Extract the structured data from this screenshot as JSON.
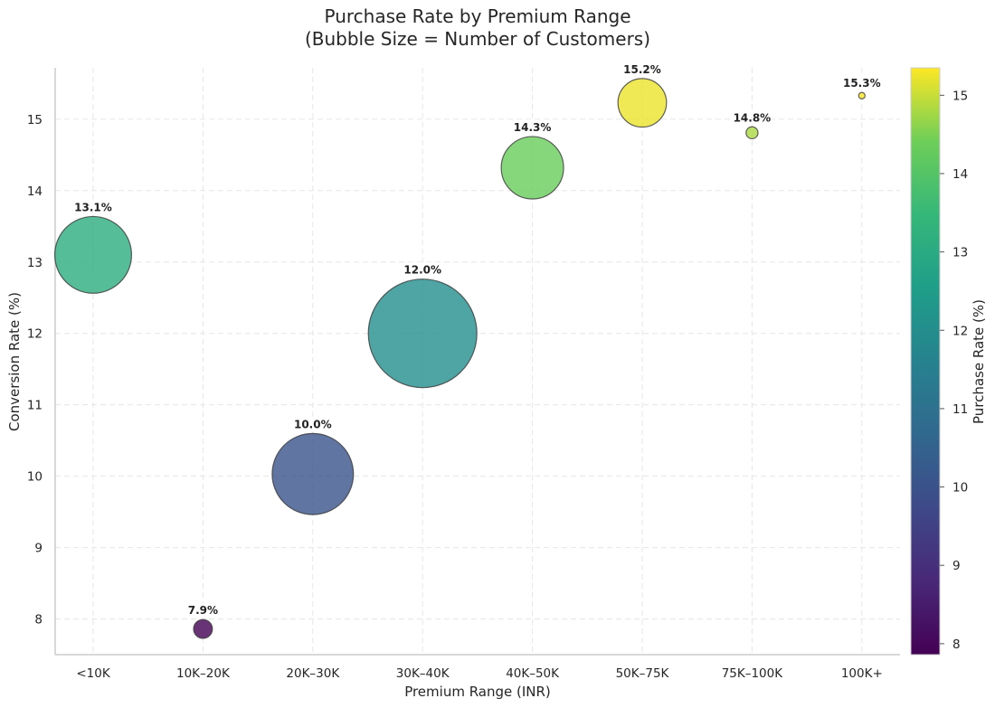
{
  "chart_data": {
    "type": "scatter",
    "title": "Purchase Rate by Premium Range",
    "subtitle": "(Bubble Size = Number of Customers)",
    "xlabel": "Premium Range (INR)",
    "ylabel": "Conversion Rate (%)",
    "categories": [
      "<10K",
      "10K–20K",
      "20K–30K",
      "30K–40K",
      "40K–50K",
      "50K–75K",
      "75K–100K",
      "100K+"
    ],
    "values": [
      13.1,
      7.86,
      10.03,
      12.0,
      14.32,
      15.23,
      14.81,
      15.33
    ],
    "labels": [
      "13.1%",
      "7.9%",
      "10.0%",
      "12.0%",
      "14.3%",
      "15.2%",
      "14.8%",
      "15.3%"
    ],
    "relative_customers": [
      0.5,
      0.03,
      0.56,
      1.0,
      0.33,
      0.2,
      0.012,
      0.0035
    ],
    "ylim": [
      7.5,
      15.72
    ],
    "yticks": [
      8,
      9,
      10,
      11,
      12,
      13,
      14,
      15
    ],
    "grid": true,
    "colorbar": {
      "label": "Purchase Rate (%)",
      "colormap": "viridis",
      "range": [
        7.86,
        15.35
      ],
      "ticks": [
        8,
        9,
        10,
        11,
        12,
        13,
        14,
        15
      ]
    }
  }
}
